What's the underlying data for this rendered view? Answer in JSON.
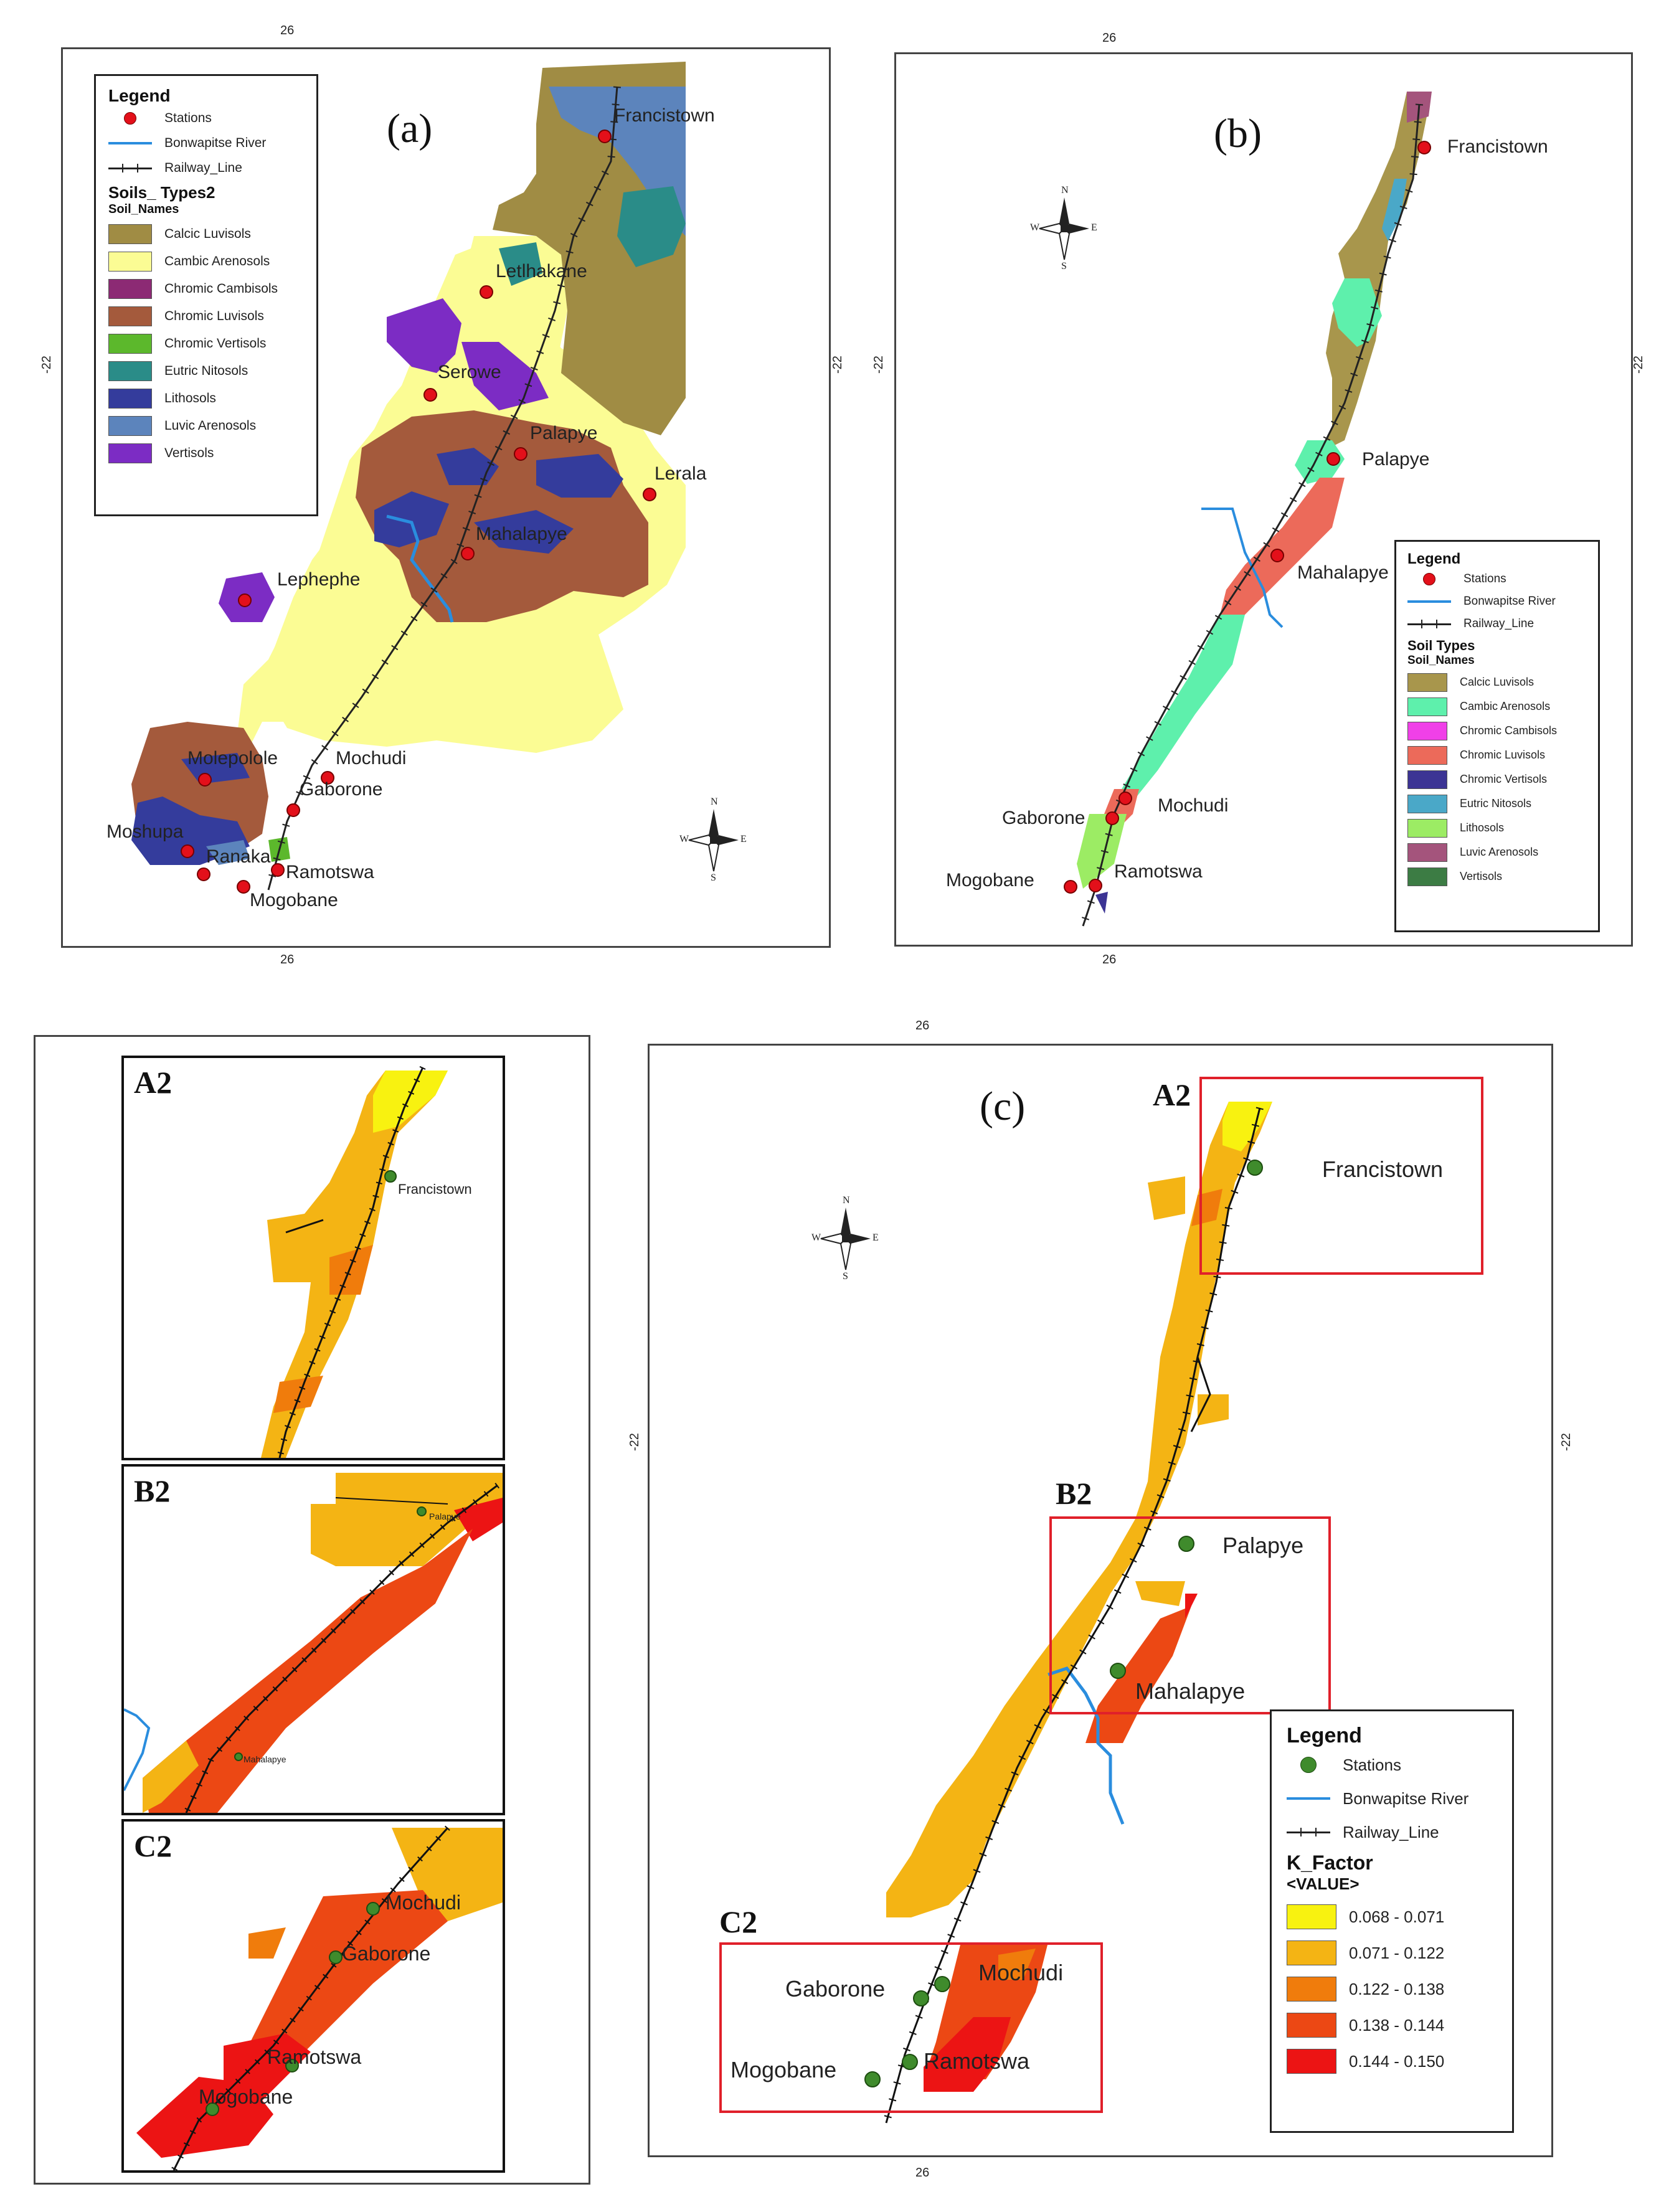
{
  "panels": {
    "a": {
      "label": "(a)",
      "legend": {
        "title": "Legend",
        "symbols": [
          {
            "kind": "station",
            "label": "Stations"
          },
          {
            "kind": "river",
            "label": "Bonwapitse River"
          },
          {
            "kind": "rail",
            "label": "Railway_Line"
          }
        ],
        "layer_title": "Soils_ Types2",
        "field_title": "Soil_Names",
        "classes": [
          {
            "name": "Calcic Luvisols",
            "color": "#a08c44"
          },
          {
            "name": "Cambic Arenosols",
            "color": "#fbfc94"
          },
          {
            "name": "Chromic Cambisols",
            "color": "#8c2a74"
          },
          {
            "name": "Chromic Luvisols",
            "color": "#a45a3c"
          },
          {
            "name": "Chromic Vertisols",
            "color": "#5cb82c"
          },
          {
            "name": "Eutric Nitosols",
            "color": "#2a8c88"
          },
          {
            "name": "Lithosols",
            "color": "#343c9c"
          },
          {
            "name": "Luvic Arenosols",
            "color": "#5c84bc"
          },
          {
            "name": "Vertisols",
            "color": "#7c2cc4"
          }
        ]
      },
      "places": [
        "Francistown",
        "Letlhakane",
        "Serowe",
        "Palapye",
        "Lerala",
        "Mahalapye",
        "Lephephe",
        "Molepolole",
        "Mochudi",
        "Gaborone",
        "Moshupa",
        "Ranaka",
        "Ramotswa",
        "Mogobane"
      ],
      "coords": {
        "top": "26",
        "bottom": "26",
        "left": "-22",
        "right": "-22"
      }
    },
    "b": {
      "label": "(b)",
      "legend": {
        "title": "Legend",
        "symbols": [
          {
            "kind": "station",
            "label": "Stations"
          },
          {
            "kind": "river",
            "label": "Bonwapitse River"
          },
          {
            "kind": "rail",
            "label": "Railway_Line"
          }
        ],
        "layer_title": "Soil Types",
        "field_title": "Soil_Names",
        "classes": [
          {
            "name": "Calcic Luvisols",
            "color": "#a8964c"
          },
          {
            "name": "Cambic Arenosols",
            "color": "#5ef0ac"
          },
          {
            "name": "Chromic Cambisols",
            "color": "#f040e8"
          },
          {
            "name": "Chromic Luvisols",
            "color": "#ec6a5a"
          },
          {
            "name": "Chromic Vertisols",
            "color": "#3c3494"
          },
          {
            "name": "Eutric Nitosols",
            "color": "#4aa8c8"
          },
          {
            "name": "Lithosols",
            "color": "#9cec64"
          },
          {
            "name": "Luvic Arenosols",
            "color": "#a4547c"
          },
          {
            "name": "Vertisols",
            "color": "#3c7c44"
          }
        ]
      },
      "places": [
        "Francistown",
        "Palapye",
        "Mahalapye",
        "Mochudi",
        "Gaborone",
        "Mogobane",
        "Ramotswa"
      ],
      "coords": {
        "top": "26",
        "bottom": "26",
        "left": "-22",
        "right": "-22"
      }
    },
    "c": {
      "label": "(c)",
      "legend": {
        "title": "Legend",
        "symbols": [
          {
            "kind": "station",
            "label": "Stations"
          },
          {
            "kind": "river",
            "label": "Bonwapitse River"
          },
          {
            "kind": "rail",
            "label": "Railway_Line"
          }
        ],
        "layer_title": "K_Factor",
        "field_title": "<VALUE>",
        "classes": [
          {
            "name": "0.068 - 0.071",
            "color": "#f8f210"
          },
          {
            "name": "0.071 - 0.122",
            "color": "#f4b414"
          },
          {
            "name": "0.122 - 0.138",
            "color": "#f07c0c"
          },
          {
            "name": "0.138 - 0.144",
            "color": "#ec4814"
          },
          {
            "name": "0.144 - 0.150",
            "color": "#ec1414"
          }
        ]
      },
      "boxes": [
        "A2",
        "B2",
        "C2"
      ],
      "places": [
        "Francistown",
        "Palapye",
        "Mahalapye",
        "Gaborone",
        "Mochudi",
        "Mogobane",
        "Ramotswa"
      ],
      "coords": {
        "top": "26",
        "bottom": "26",
        "left": "-22",
        "right": "-22"
      }
    },
    "insets": [
      {
        "label": "A2",
        "places": [
          "Francistown"
        ]
      },
      {
        "label": "B2",
        "places": [
          "Palapye",
          "Mahalapye"
        ]
      },
      {
        "label": "C2",
        "places": [
          "Mochudi",
          "Gaborone",
          "Ramotswa",
          "Mogobane"
        ]
      }
    ]
  },
  "compass": {
    "n": "N",
    "s": "S",
    "e": "E",
    "w": "W"
  }
}
